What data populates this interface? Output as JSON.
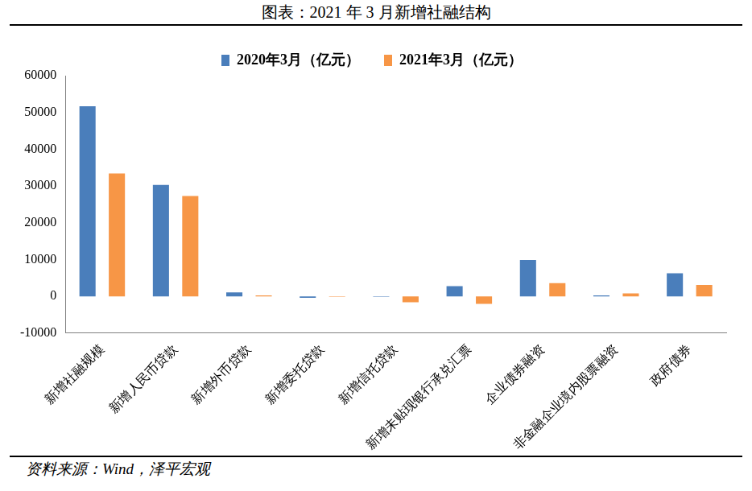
{
  "chart_data": {
    "type": "bar",
    "title": "图表：2021 年 3 月新增社融结构",
    "annotations": [
      "资料来源：Wind，泽平宏观"
    ],
    "categories": [
      "新增社融规模",
      "新增人民币贷款",
      "新增外币贷款",
      "新增委托贷款",
      "新增信托贷款",
      "新增未贴现银行承兑汇票",
      "企业债券融资",
      "非金融企业境内股票融资",
      "政府债券"
    ],
    "series": [
      {
        "name": "2020年3月（亿元）",
        "color": "#4a7ebb",
        "values": [
          51700,
          30300,
          1100,
          -400,
          -100,
          2800,
          9900,
          300,
          6300
        ]
      },
      {
        "name": "2021年3月（亿元）",
        "color": "#f79646",
        "values": [
          33400,
          27300,
          300,
          -100,
          -1600,
          -2000,
          3600,
          800,
          3100
        ]
      }
    ],
    "ylim": [
      -10000,
      60000
    ],
    "yticks": [
      -10000,
      0,
      10000,
      20000,
      30000,
      40000,
      50000,
      60000
    ],
    "grid": false,
    "legend": "top"
  }
}
